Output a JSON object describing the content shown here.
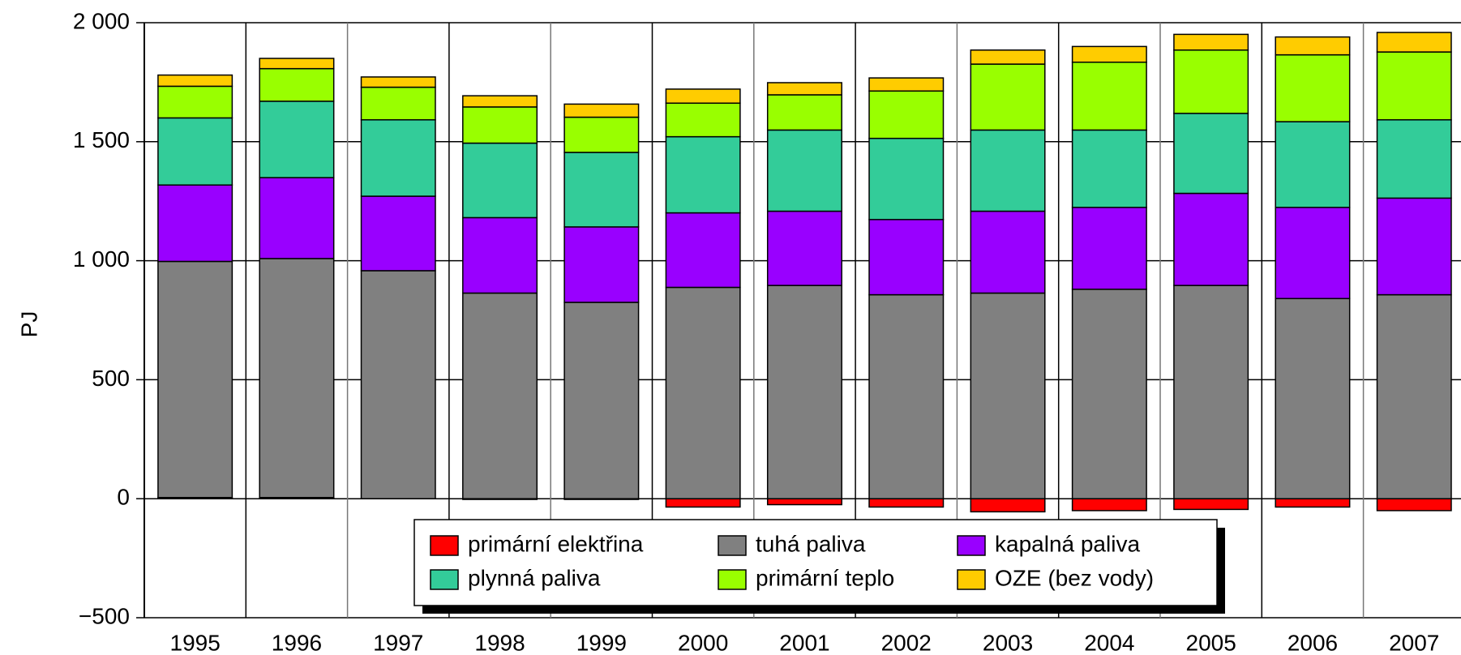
{
  "chart_data": {
    "type": "stacked_bar",
    "y_label": "PJ",
    "categories": [
      "1995",
      "1996",
      "1997",
      "1998",
      "1999",
      "2000",
      "2001",
      "2002",
      "2003",
      "2004",
      "2005",
      "2006",
      "2007"
    ],
    "series": [
      {
        "name": "primární elektřina",
        "color": "#ff0000",
        "values": [
          5,
          5,
          0,
          -3,
          -3,
          -35,
          -25,
          -35,
          -55,
          -50,
          -45,
          -35,
          -50
        ]
      },
      {
        "name": "tuhá paliva",
        "color": "#808080",
        "values": [
          992,
          1004,
          958,
          864,
          825,
          888,
          896,
          857,
          864,
          880,
          896,
          841,
          857
        ]
      },
      {
        "name": "kapalná paliva",
        "color": "#9900ff",
        "values": [
          321,
          340,
          313,
          317,
          317,
          313,
          312,
          316,
          344,
          344,
          387,
          383,
          406
        ]
      },
      {
        "name": "plynná paliva",
        "color": "#33cc99",
        "values": [
          282,
          321,
          321,
          313,
          313,
          320,
          341,
          341,
          341,
          325,
          336,
          360,
          329
        ]
      },
      {
        "name": "primární teplo",
        "color": "#99ff00",
        "values": [
          133,
          137,
          137,
          152,
          148,
          141,
          148,
          199,
          277,
          285,
          266,
          281,
          285
        ]
      },
      {
        "name": "OZE (bez vody)",
        "color": "#ffcc00",
        "values": [
          47,
          43,
          43,
          47,
          55,
          59,
          51,
          55,
          59,
          66,
          66,
          75,
          82
        ]
      }
    ],
    "ylim": [
      -500,
      2000
    ],
    "yticks": [
      {
        "value": -500,
        "label": "−500"
      },
      0,
      500,
      {
        "value": 1000,
        "label": "1 000"
      },
      {
        "value": 1500,
        "label": "1 500"
      },
      {
        "value": 2000,
        "label": "2 000"
      }
    ],
    "grid": true
  }
}
